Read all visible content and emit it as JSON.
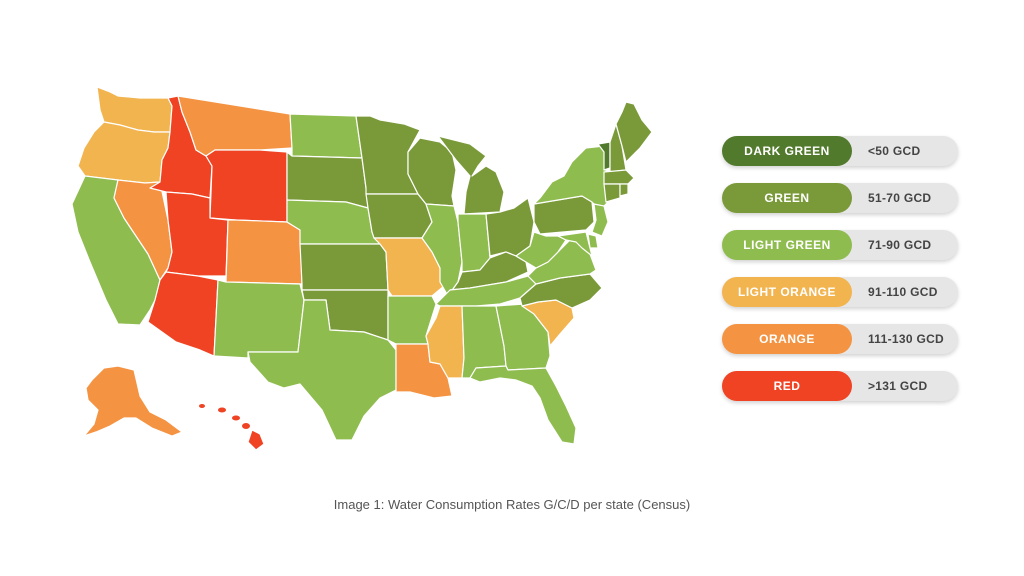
{
  "legend": {
    "items": [
      {
        "name": "DARK GREEN",
        "range": "<50 GCD",
        "color": "#527a2c"
      },
      {
        "name": "GREEN",
        "range": "51-70 GCD",
        "color": "#7a9a3a"
      },
      {
        "name": "LIGHT GREEN",
        "range": "71-90 GCD",
        "color": "#8fbc4f"
      },
      {
        "name": "LIGHT ORANGE",
        "range": "91-110 GCD",
        "color": "#f2b44f"
      },
      {
        "name": "ORANGE",
        "range": "111-130 GCD",
        "color": "#f49342"
      },
      {
        "name": "RED",
        "range": ">131 GCD",
        "color": "#ef4323"
      }
    ]
  },
  "caption": "Image 1: Water Consumption Rates G/C/D per state (Census)",
  "state_categories": {
    "washington": "LIGHT ORANGE",
    "oregon": "LIGHT ORANGE",
    "california": "LIGHT GREEN",
    "nevada": "ORANGE",
    "idaho": "RED",
    "montana": "ORANGE",
    "wyoming": "RED",
    "utah": "RED",
    "arizona": "RED",
    "colorado": "ORANGE",
    "new-mexico": "LIGHT GREEN",
    "north-dakota": "LIGHT GREEN",
    "south-dakota": "GREEN",
    "nebraska": "LIGHT GREEN",
    "kansas": "GREEN",
    "oklahoma": "GREEN",
    "texas": "LIGHT GREEN",
    "minnesota": "GREEN",
    "iowa": "GREEN",
    "missouri": "LIGHT ORANGE",
    "arkansas": "LIGHT GREEN",
    "louisiana": "ORANGE",
    "wisconsin": "GREEN",
    "illinois": "LIGHT GREEN",
    "michigan": "GREEN",
    "indiana": "LIGHT GREEN",
    "ohio": "GREEN",
    "kentucky": "GREEN",
    "tennessee": "LIGHT GREEN",
    "mississippi": "LIGHT ORANGE",
    "alabama": "LIGHT GREEN",
    "georgia": "LIGHT GREEN",
    "florida": "LIGHT GREEN",
    "south-carolina": "LIGHT ORANGE",
    "north-carolina": "GREEN",
    "virginia": "LIGHT GREEN",
    "west-virginia": "LIGHT GREEN",
    "pennsylvania": "GREEN",
    "new-york": "LIGHT GREEN",
    "new-jersey": "LIGHT GREEN",
    "maryland": "LIGHT GREEN",
    "delaware": "LIGHT GREEN",
    "connecticut": "GREEN",
    "rhode-island": "GREEN",
    "massachusetts": "GREEN",
    "vermont": "DARK GREEN",
    "new-hampshire": "GREEN",
    "maine": "GREEN",
    "alaska": "ORANGE",
    "hawaii": "RED"
  }
}
